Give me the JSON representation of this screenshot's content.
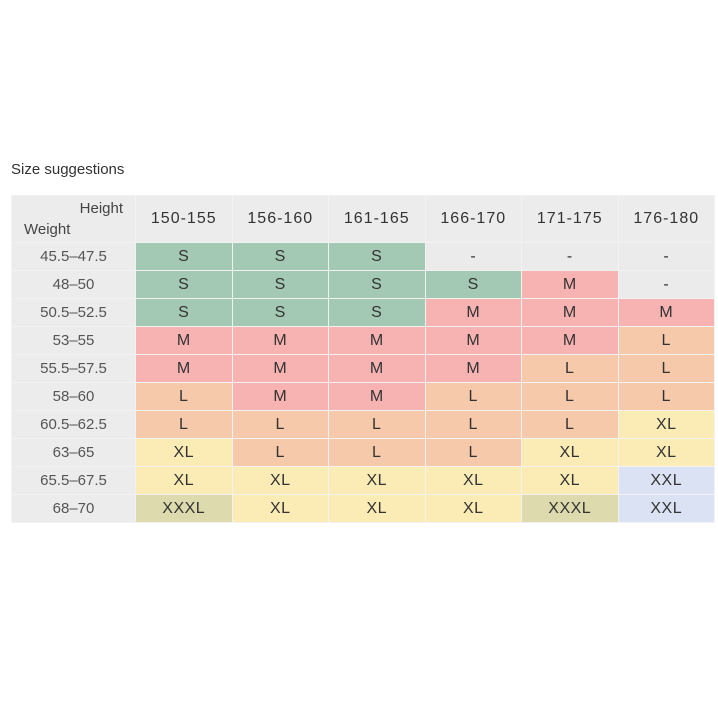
{
  "title": "Size suggestions",
  "corner": {
    "height_label": "Height",
    "weight_label": "Weight"
  },
  "heights": [
    "150-155",
    "156-160",
    "161-165",
    "166-170",
    "171-175",
    "176-180"
  ],
  "rows": [
    {
      "weight": "45.5–47.5",
      "sizes": [
        "S",
        "S",
        "S",
        "-",
        "-",
        "-"
      ]
    },
    {
      "weight": "48–50",
      "sizes": [
        "S",
        "S",
        "S",
        "S",
        "M",
        "-"
      ]
    },
    {
      "weight": "50.5–52.5",
      "sizes": [
        "S",
        "S",
        "S",
        "M",
        "M",
        "M"
      ]
    },
    {
      "weight": "53–55",
      "sizes": [
        "M",
        "M",
        "M",
        "M",
        "M",
        "L"
      ]
    },
    {
      "weight": "55.5–57.5",
      "sizes": [
        "M",
        "M",
        "M",
        "M",
        "L",
        "L"
      ]
    },
    {
      "weight": "58–60",
      "sizes": [
        "L",
        "M",
        "M",
        "L",
        "L",
        "L"
      ]
    },
    {
      "weight": "60.5–62.5",
      "sizes": [
        "L",
        "L",
        "L",
        "L",
        "L",
        "XL"
      ]
    },
    {
      "weight": "63–65",
      "sizes": [
        "XL",
        "L",
        "L",
        "L",
        "XL",
        "XL"
      ]
    },
    {
      "weight": "65.5–67.5",
      "sizes": [
        "XL",
        "XL",
        "XL",
        "XL",
        "XL",
        "XXL"
      ]
    },
    {
      "weight": "68–70",
      "sizes": [
        "XXXL",
        "XL",
        "XL",
        "XL",
        "XXXL",
        "XXL"
      ]
    }
  ],
  "size_colors": {
    "S": "#a3c8b4",
    "M": "#f7b3b2",
    "L": "#f6c9aa",
    "XL": "#fbecb6",
    "XXL": "#dae2f3",
    "XXXL": "#dddbad",
    "-": "#ebebeb"
  }
}
